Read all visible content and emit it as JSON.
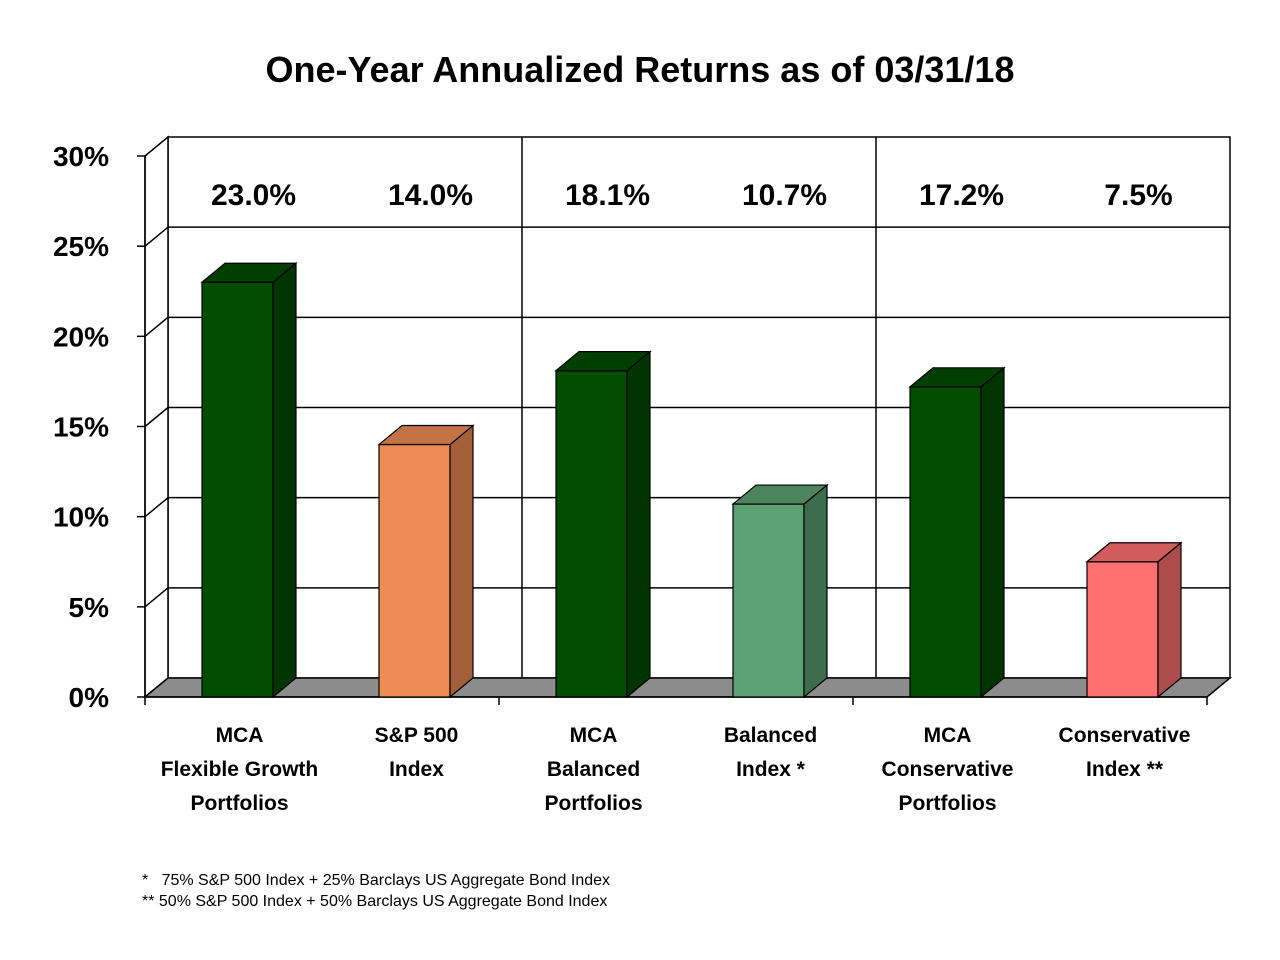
{
  "chart_data": {
    "type": "bar",
    "title": "One-Year Annualized Returns as of 03/31/18",
    "categories": [
      [
        "MCA",
        "Flexible Growth",
        "Portfolios"
      ],
      [
        "S&P 500",
        "Index"
      ],
      [
        "MCA",
        "Balanced",
        "Portfolios"
      ],
      [
        "Balanced",
        "Index *"
      ],
      [
        "MCA",
        "Conservative",
        "Portfolios"
      ],
      [
        "Conservative",
        "Index **"
      ]
    ],
    "values": [
      23.0,
      14.0,
      18.1,
      10.7,
      17.2,
      7.5
    ],
    "data_labels": [
      "23.0%",
      "14.0%",
      "18.1%",
      "10.7%",
      "17.2%",
      "7.5%"
    ],
    "colors": [
      "#004d00",
      "#ee8c55",
      "#004d00",
      "#5ba172",
      "#004d00",
      "#ff7070"
    ],
    "ylim": [
      0,
      30
    ],
    "yticks": [
      "0%",
      "5%",
      "10%",
      "15%",
      "20%",
      "25%",
      "30%"
    ],
    "grid": true,
    "style": "3d"
  },
  "footnotes": [
    "*   75% S&P 500 Index + 25% Barclays US Aggregate Bond Index",
    "** 50% S&P 500 Index + 50% Barclays US Aggregate Bond Index"
  ]
}
